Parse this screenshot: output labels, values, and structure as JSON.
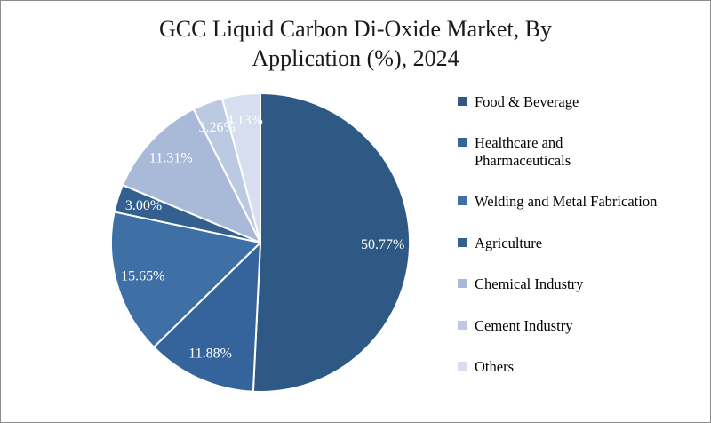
{
  "page": {
    "background": "#ffffff",
    "border_color": "#8c8c8c"
  },
  "chart_data": {
    "type": "pie",
    "title": "GCC Liquid Carbon Di-Oxide Market, By Application (%), 2024",
    "unit": "%",
    "legend_position": "right",
    "start_angle_deg": 0,
    "direction": "clockwise",
    "label_color": "#ffffff",
    "slices": [
      {
        "name": "Food & Beverage",
        "value": 50.77,
        "label": "50.77%",
        "color": "#2E5984"
      },
      {
        "name": "Healthcare and Pharmaceuticals",
        "value": 11.88,
        "label": "11.88%",
        "color": "#35639B",
        "legend_label": "Healthcare and\nPharmaceuticals"
      },
      {
        "name": "Welding and Metal Fabrication",
        "value": 15.65,
        "label": "15.65%",
        "color": "#3E6FA5"
      },
      {
        "name": "Agriculture",
        "value": 3.0,
        "label": "3.00%",
        "color": "#33608F"
      },
      {
        "name": "Chemical Industry",
        "value": 11.31,
        "label": "11.31%",
        "color": "#A9B9D8"
      },
      {
        "name": "Cement Industry",
        "value": 3.26,
        "label": "3.26%",
        "color": "#BCC9E2"
      },
      {
        "name": "Others",
        "value": 4.13,
        "label": "4.13%",
        "color": "#D6DEEF"
      }
    ]
  }
}
